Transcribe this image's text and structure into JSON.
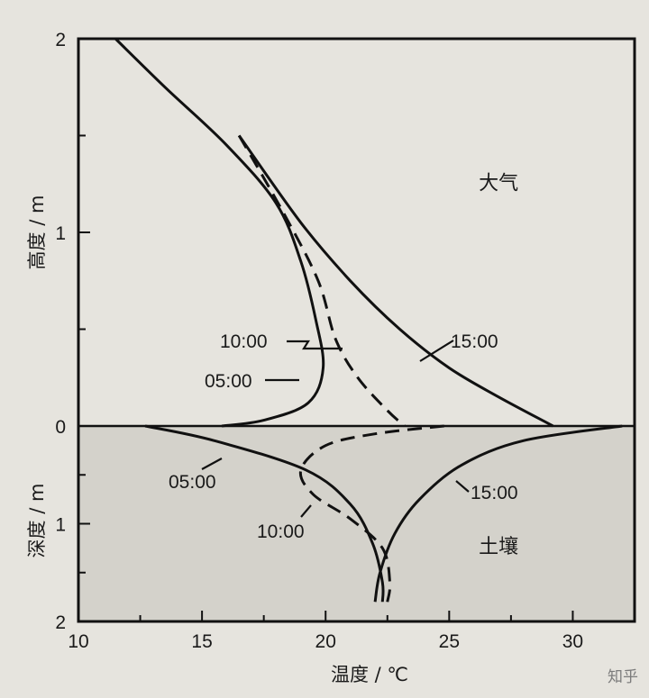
{
  "chart_data": {
    "type": "line",
    "xlabel": "温度 / ℃",
    "ylabel_top": "高度 / m",
    "ylabel_bottom": "深度 / m",
    "x_ticks": [
      "10",
      "15",
      "20",
      "25",
      "30"
    ],
    "y_ticks_top": [
      "2",
      "1",
      "0"
    ],
    "y_ticks_bottom": [
      "0",
      "1",
      "2"
    ],
    "xlim": [
      10,
      32.5
    ],
    "height_lim": [
      0,
      2
    ],
    "depth_lim": [
      0,
      2
    ],
    "region_labels": {
      "atmosphere": "大气",
      "soil": "土壤"
    },
    "series": [
      {
        "name": "05:00",
        "style": "solid",
        "air_height_vs_temp": [
          [
            11.5,
            2.0
          ],
          [
            13.5,
            1.75
          ],
          [
            16.0,
            1.45
          ],
          [
            18.0,
            1.15
          ],
          [
            19.0,
            0.85
          ],
          [
            19.6,
            0.55
          ],
          [
            19.9,
            0.3
          ],
          [
            19.3,
            0.12
          ],
          [
            17.5,
            0.03
          ],
          [
            15.8,
            0.0
          ]
        ],
        "soil_depth_vs_temp": [
          [
            12.7,
            0.0
          ],
          [
            15.5,
            0.15
          ],
          [
            19.2,
            0.45
          ],
          [
            21.0,
            0.8
          ],
          [
            21.9,
            1.2
          ],
          [
            22.3,
            1.6
          ],
          [
            22.3,
            1.8
          ]
        ]
      },
      {
        "name": "10:00",
        "style": "dashed",
        "air_height_vs_temp": [
          [
            16.5,
            1.5
          ],
          [
            18.3,
            1.1
          ],
          [
            19.7,
            0.75
          ],
          [
            20.4,
            0.45
          ],
          [
            21.3,
            0.25
          ],
          [
            22.5,
            0.08
          ],
          [
            23.2,
            0.0
          ]
        ],
        "soil_depth_vs_temp": [
          [
            24.8,
            0.0
          ],
          [
            22.0,
            0.08
          ],
          [
            20.0,
            0.2
          ],
          [
            19.0,
            0.45
          ],
          [
            19.5,
            0.7
          ],
          [
            21.0,
            0.95
          ],
          [
            22.3,
            1.25
          ],
          [
            22.6,
            1.6
          ],
          [
            22.5,
            1.8
          ]
        ]
      },
      {
        "name": "15:00",
        "style": "solid",
        "air_height_vs_temp": [
          [
            16.5,
            1.5
          ],
          [
            19.0,
            1.05
          ],
          [
            21.0,
            0.75
          ],
          [
            23.0,
            0.5
          ],
          [
            25.0,
            0.3
          ],
          [
            27.0,
            0.15
          ],
          [
            29.2,
            0.0
          ]
        ],
        "soil_depth_vs_temp": [
          [
            32.0,
            0.0
          ],
          [
            28.0,
            0.15
          ],
          [
            25.5,
            0.4
          ],
          [
            23.8,
            0.75
          ],
          [
            22.8,
            1.1
          ],
          [
            22.2,
            1.5
          ],
          [
            22.0,
            1.8
          ]
        ]
      }
    ]
  },
  "watermark": "知乎"
}
